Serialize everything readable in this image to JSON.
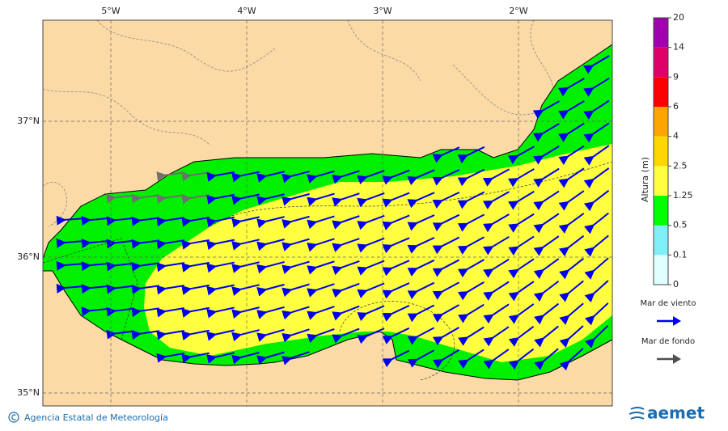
{
  "map": {
    "lon_labels": [
      "5°W",
      "4°W",
      "3°W",
      "2°W"
    ],
    "lat_labels": [
      "37°N",
      "36°N",
      "35°N"
    ]
  },
  "colorbar": {
    "title": "Altura (m)",
    "ticks": [
      0,
      0.1,
      0.5,
      1.25,
      2.5,
      4,
      6,
      9,
      14,
      20
    ],
    "colors": [
      "#e0ffff",
      "#80f0f8",
      "#00ff00",
      "#ffff40",
      "#ffd700",
      "#ffa500",
      "#ff0000",
      "#e0006a",
      "#a000b0"
    ]
  },
  "legend": {
    "items": [
      {
        "label": "Mar de viento",
        "color": "#0000ee"
      },
      {
        "label": "Mar de fondo",
        "color": "#505050"
      }
    ]
  },
  "footer": {
    "credit": "Agencia Estatal de Meteorología",
    "logo": "aemet"
  }
}
